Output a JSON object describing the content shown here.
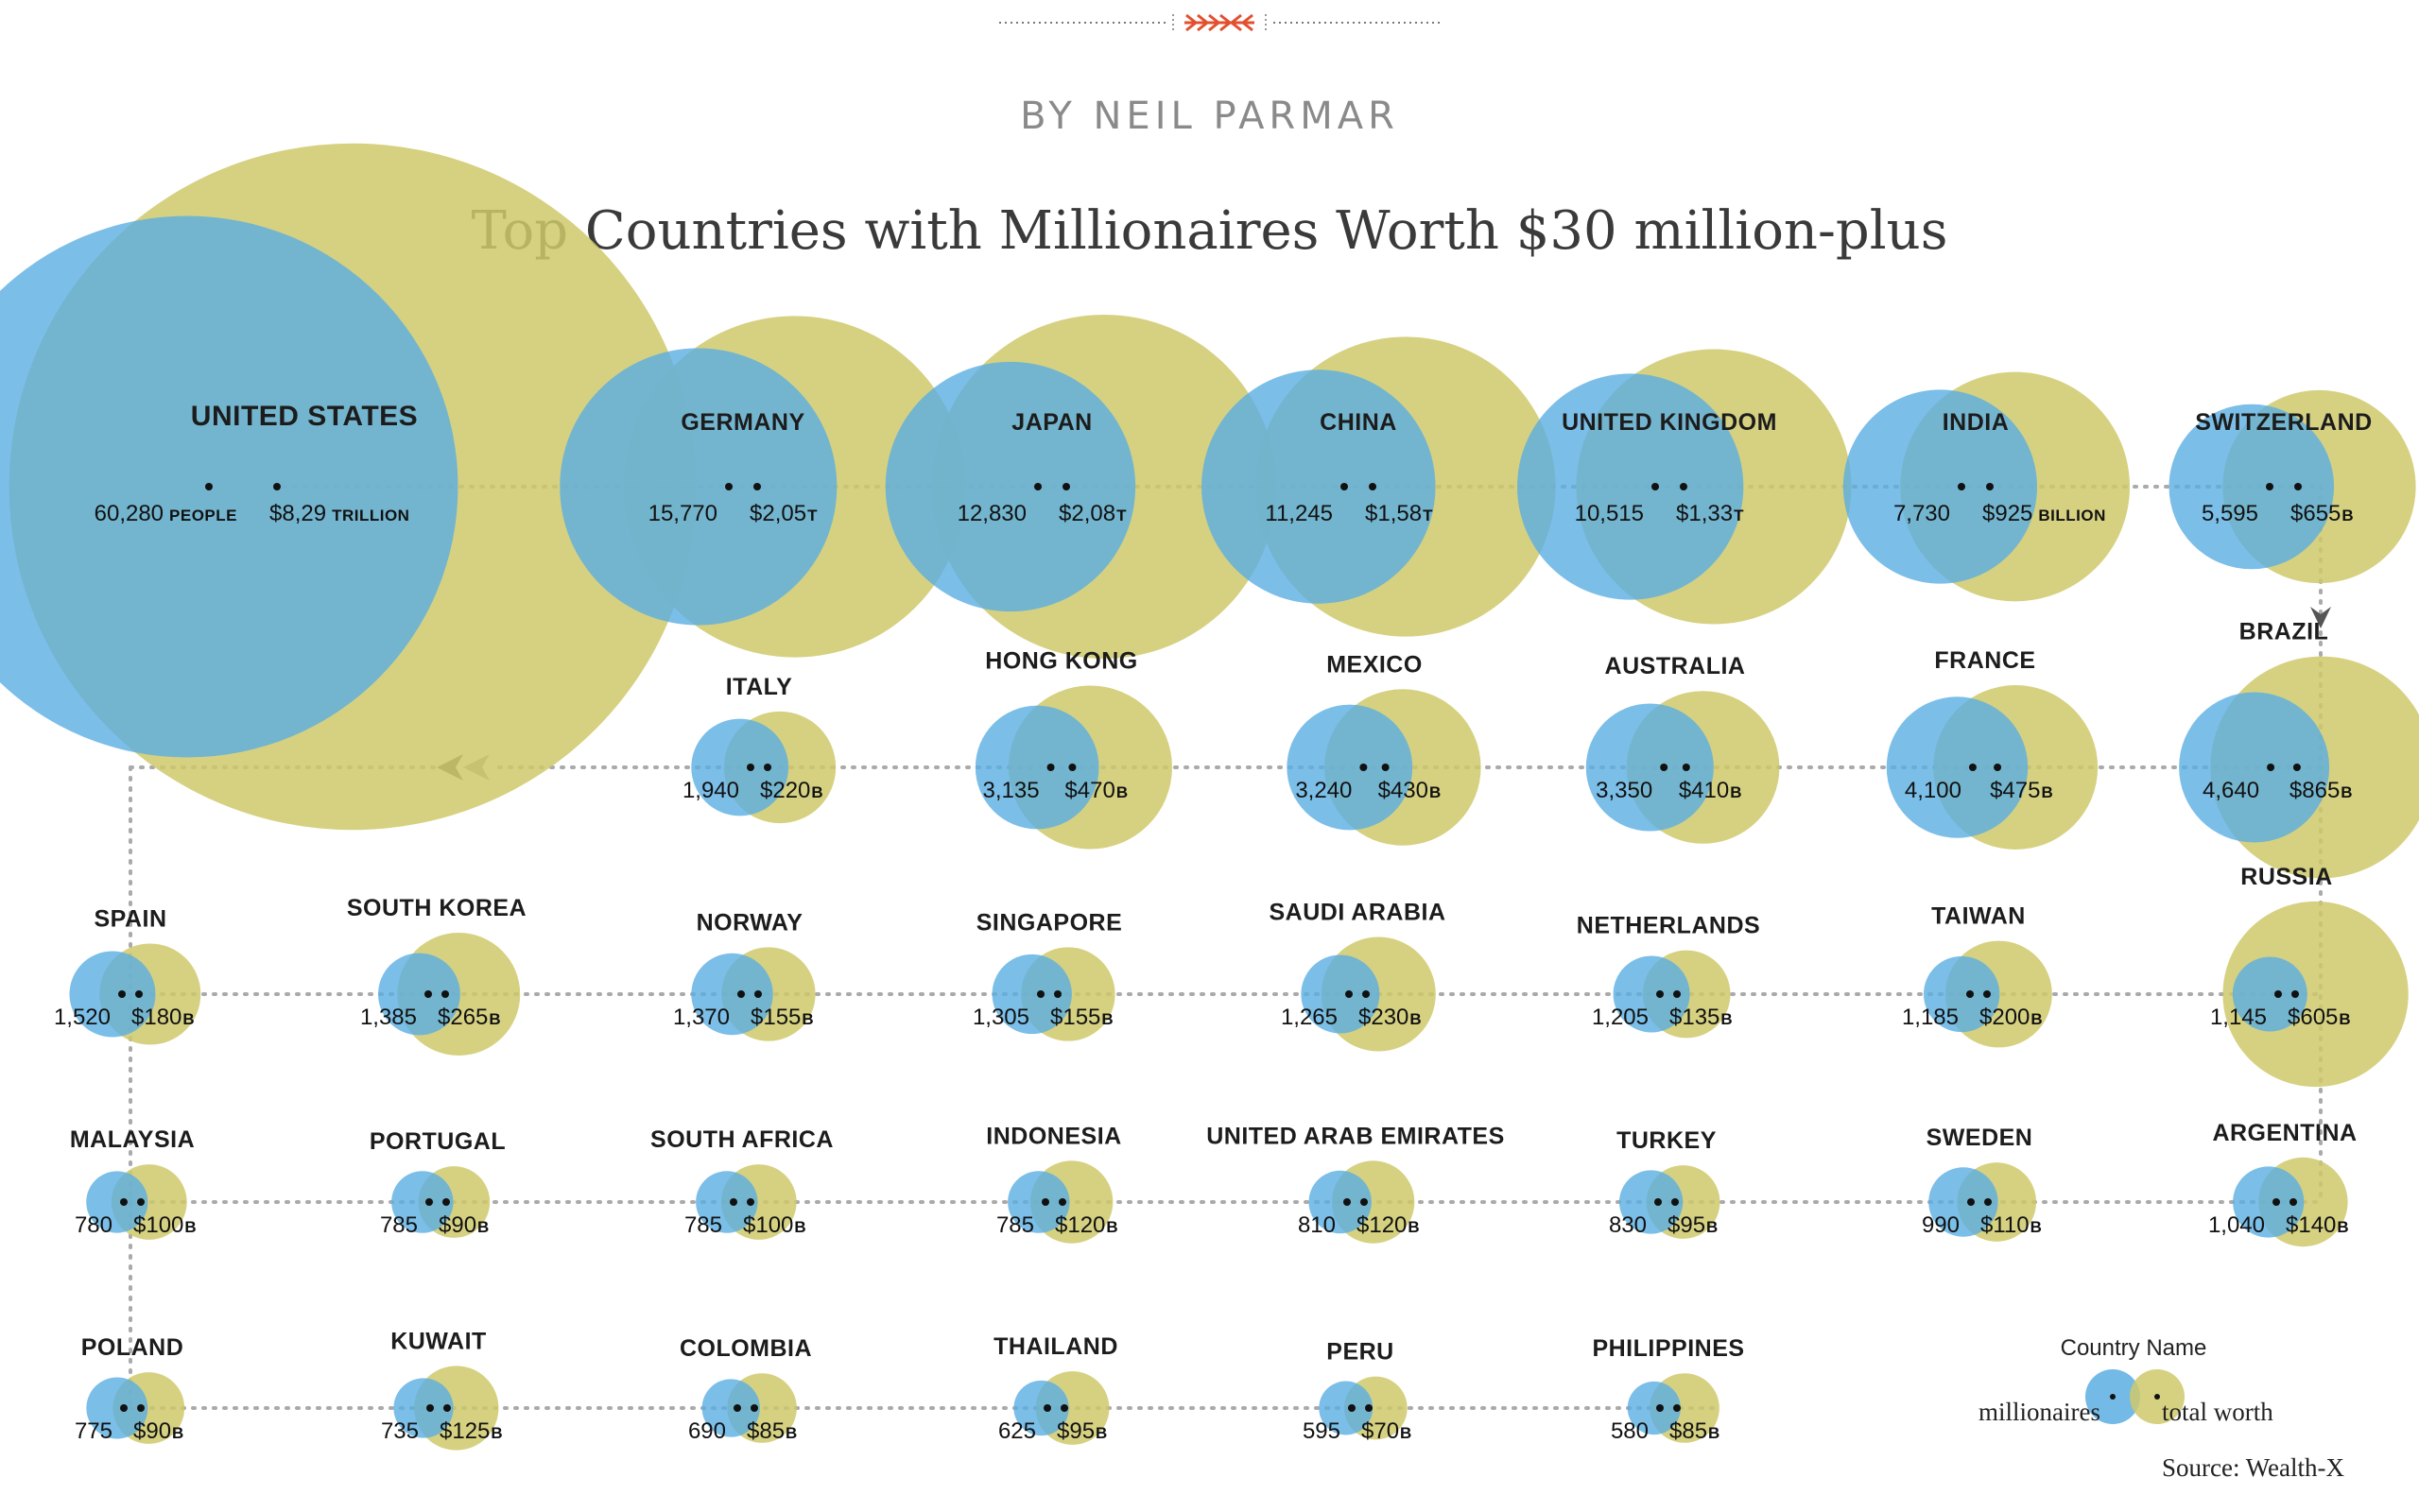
{
  "byline": "BY NEIL PARMAR",
  "colors": {
    "millionaires": "#5aaee2",
    "worth": "#cfc96b",
    "connector": "#aaaaaa",
    "ornament": "#e2502f"
  },
  "chart_data": {
    "type": "bubble",
    "title": "Top Countries with Millionaires Worth $30 million-plus",
    "series": [
      {
        "name": "millionaires",
        "unit": "people"
      },
      {
        "name": "total worth",
        "unit": "USD billions"
      }
    ],
    "countries": [
      {
        "name": "UNITED STATES",
        "millionaires": 60280,
        "worth_billion": 8290,
        "label_people": "60,280",
        "label_people_unit": "PEOPLE",
        "label_worth": "$8,29",
        "label_worth_unit": "TRILLION"
      },
      {
        "name": "GERMANY",
        "millionaires": 15770,
        "worth_billion": 2050,
        "label_people": "15,770",
        "label_worth": "$2,05",
        "label_worth_unit": "T"
      },
      {
        "name": "JAPAN",
        "millionaires": 12830,
        "worth_billion": 2080,
        "label_people": "12,830",
        "label_worth": "$2,08",
        "label_worth_unit": "T"
      },
      {
        "name": "CHINA",
        "millionaires": 11245,
        "worth_billion": 1580,
        "label_people": "11,245",
        "label_worth": "$1,58",
        "label_worth_unit": "T"
      },
      {
        "name": "UNITED KINGDOM",
        "millionaires": 10515,
        "worth_billion": 1330,
        "label_people": "10,515",
        "label_worth": "$1,33",
        "label_worth_unit": "T"
      },
      {
        "name": "INDIA",
        "millionaires": 7730,
        "worth_billion": 925,
        "label_people": "7,730",
        "label_worth": "$925",
        "label_worth_unit": "BILLION"
      },
      {
        "name": "SWITZERLAND",
        "millionaires": 5595,
        "worth_billion": 655,
        "label_people": "5,595",
        "label_worth": "$655",
        "label_worth_unit": "B"
      },
      {
        "name": "BRAZIL",
        "millionaires": 4640,
        "worth_billion": 865,
        "label_people": "4,640",
        "label_worth": "$865",
        "label_worth_unit": "B"
      },
      {
        "name": "FRANCE",
        "millionaires": 4100,
        "worth_billion": 475,
        "label_people": "4,100",
        "label_worth": "$475",
        "label_worth_unit": "B"
      },
      {
        "name": "AUSTRALIA",
        "millionaires": 3350,
        "worth_billion": 410,
        "label_people": "3,350",
        "label_worth": "$410",
        "label_worth_unit": "B"
      },
      {
        "name": "MEXICO",
        "millionaires": 3240,
        "worth_billion": 430,
        "label_people": "3,240",
        "label_worth": "$430",
        "label_worth_unit": "B"
      },
      {
        "name": "HONG KONG",
        "millionaires": 3135,
        "worth_billion": 470,
        "label_people": "3,135",
        "label_worth": "$470",
        "label_worth_unit": "B"
      },
      {
        "name": "ITALY",
        "millionaires": 1940,
        "worth_billion": 220,
        "label_people": "1,940",
        "label_worth": "$220",
        "label_worth_unit": "B"
      },
      {
        "name": "SPAIN",
        "millionaires": 1520,
        "worth_billion": 180,
        "label_people": "1,520",
        "label_worth": "$180",
        "label_worth_unit": "B"
      },
      {
        "name": "SOUTH KOREA",
        "millionaires": 1385,
        "worth_billion": 265,
        "label_people": "1,385",
        "label_worth": "$265",
        "label_worth_unit": "B"
      },
      {
        "name": "NORWAY",
        "millionaires": 1370,
        "worth_billion": 155,
        "label_people": "1,370",
        "label_worth": "$155",
        "label_worth_unit": "B"
      },
      {
        "name": "SINGAPORE",
        "millionaires": 1305,
        "worth_billion": 155,
        "label_people": "1,305",
        "label_worth": "$155",
        "label_worth_unit": "B"
      },
      {
        "name": "SAUDI ARABIA",
        "millionaires": 1265,
        "worth_billion": 230,
        "label_people": "1,265",
        "label_worth": "$230",
        "label_worth_unit": "B"
      },
      {
        "name": "NETHERLANDS",
        "millionaires": 1205,
        "worth_billion": 135,
        "label_people": "1,205",
        "label_worth": "$135",
        "label_worth_unit": "B"
      },
      {
        "name": "TAIWAN",
        "millionaires": 1185,
        "worth_billion": 200,
        "label_people": "1,185",
        "label_worth": "$200",
        "label_worth_unit": "B"
      },
      {
        "name": "RUSSIA",
        "millionaires": 1145,
        "worth_billion": 605,
        "label_people": "1,145",
        "label_worth": "$605",
        "label_worth_unit": "B"
      },
      {
        "name": "ARGENTINA",
        "millionaires": 1040,
        "worth_billion": 140,
        "label_people": "1,040",
        "label_worth": "$140",
        "label_worth_unit": "B"
      },
      {
        "name": "SWEDEN",
        "millionaires": 990,
        "worth_billion": 110,
        "label_people": "990",
        "label_worth": "$110",
        "label_worth_unit": "B"
      },
      {
        "name": "TURKEY",
        "millionaires": 830,
        "worth_billion": 95,
        "label_people": "830",
        "label_worth": "$95",
        "label_worth_unit": "B"
      },
      {
        "name": "UNITED ARAB EMIRATES",
        "millionaires": 810,
        "worth_billion": 120,
        "label_people": "810",
        "label_worth": "$120",
        "label_worth_unit": "B"
      },
      {
        "name": "INDONESIA",
        "millionaires": 785,
        "worth_billion": 120,
        "label_people": "785",
        "label_worth": "$120",
        "label_worth_unit": "B"
      },
      {
        "name": "SOUTH AFRICA",
        "millionaires": 785,
        "worth_billion": 100,
        "label_people": "785",
        "label_worth": "$100",
        "label_worth_unit": "B"
      },
      {
        "name": "PORTUGAL",
        "millionaires": 785,
        "worth_billion": 90,
        "label_people": "785",
        "label_worth": "$90",
        "label_worth_unit": "B"
      },
      {
        "name": "MALAYSIA",
        "millionaires": 780,
        "worth_billion": 100,
        "label_people": "780",
        "label_worth": "$100",
        "label_worth_unit": "B"
      },
      {
        "name": "POLAND",
        "millionaires": 775,
        "worth_billion": 90,
        "label_people": "775",
        "label_worth": "$90",
        "label_worth_unit": "B"
      },
      {
        "name": "KUWAIT",
        "millionaires": 735,
        "worth_billion": 125,
        "label_people": "735",
        "label_worth": "$125",
        "label_worth_unit": "B"
      },
      {
        "name": "COLOMBIA",
        "millionaires": 690,
        "worth_billion": 85,
        "label_people": "690",
        "label_worth": "$85",
        "label_worth_unit": "B"
      },
      {
        "name": "THAILAND",
        "millionaires": 625,
        "worth_billion": 95,
        "label_people": "625",
        "label_worth": "$95",
        "label_worth_unit": "B"
      },
      {
        "name": "PERU",
        "millionaires": 595,
        "worth_billion": 70,
        "label_people": "595",
        "label_worth": "$70",
        "label_worth_unit": "B"
      },
      {
        "name": "PHILIPPINES",
        "millionaires": 580,
        "worth_billion": 85,
        "label_people": "580",
        "label_worth": "$85",
        "label_worth_unit": "B"
      }
    ],
    "legend": {
      "title": "Country Name",
      "millionaires": "millionaires",
      "worth": "total worth"
    },
    "source": "Source: Wealth-X"
  }
}
